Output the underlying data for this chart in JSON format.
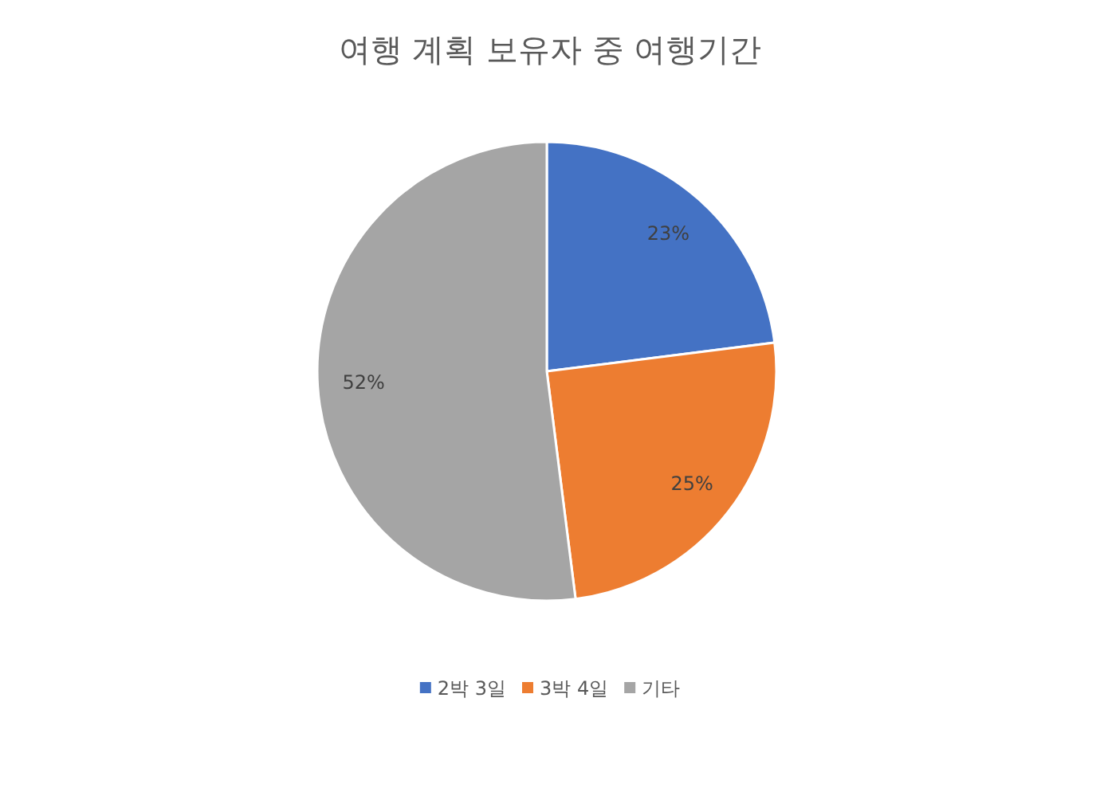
{
  "chart_data": {
    "type": "pie",
    "title": "여행 계획 보유자 중 여행기간",
    "categories": [
      "2박 3일",
      "3박 4일",
      "기타"
    ],
    "values": [
      23,
      25,
      52
    ],
    "colors": [
      "#4472c4",
      "#ed7d31",
      "#a5a5a5"
    ],
    "value_labels": [
      "23%",
      "25%",
      "52%"
    ],
    "legend": "bottom"
  }
}
